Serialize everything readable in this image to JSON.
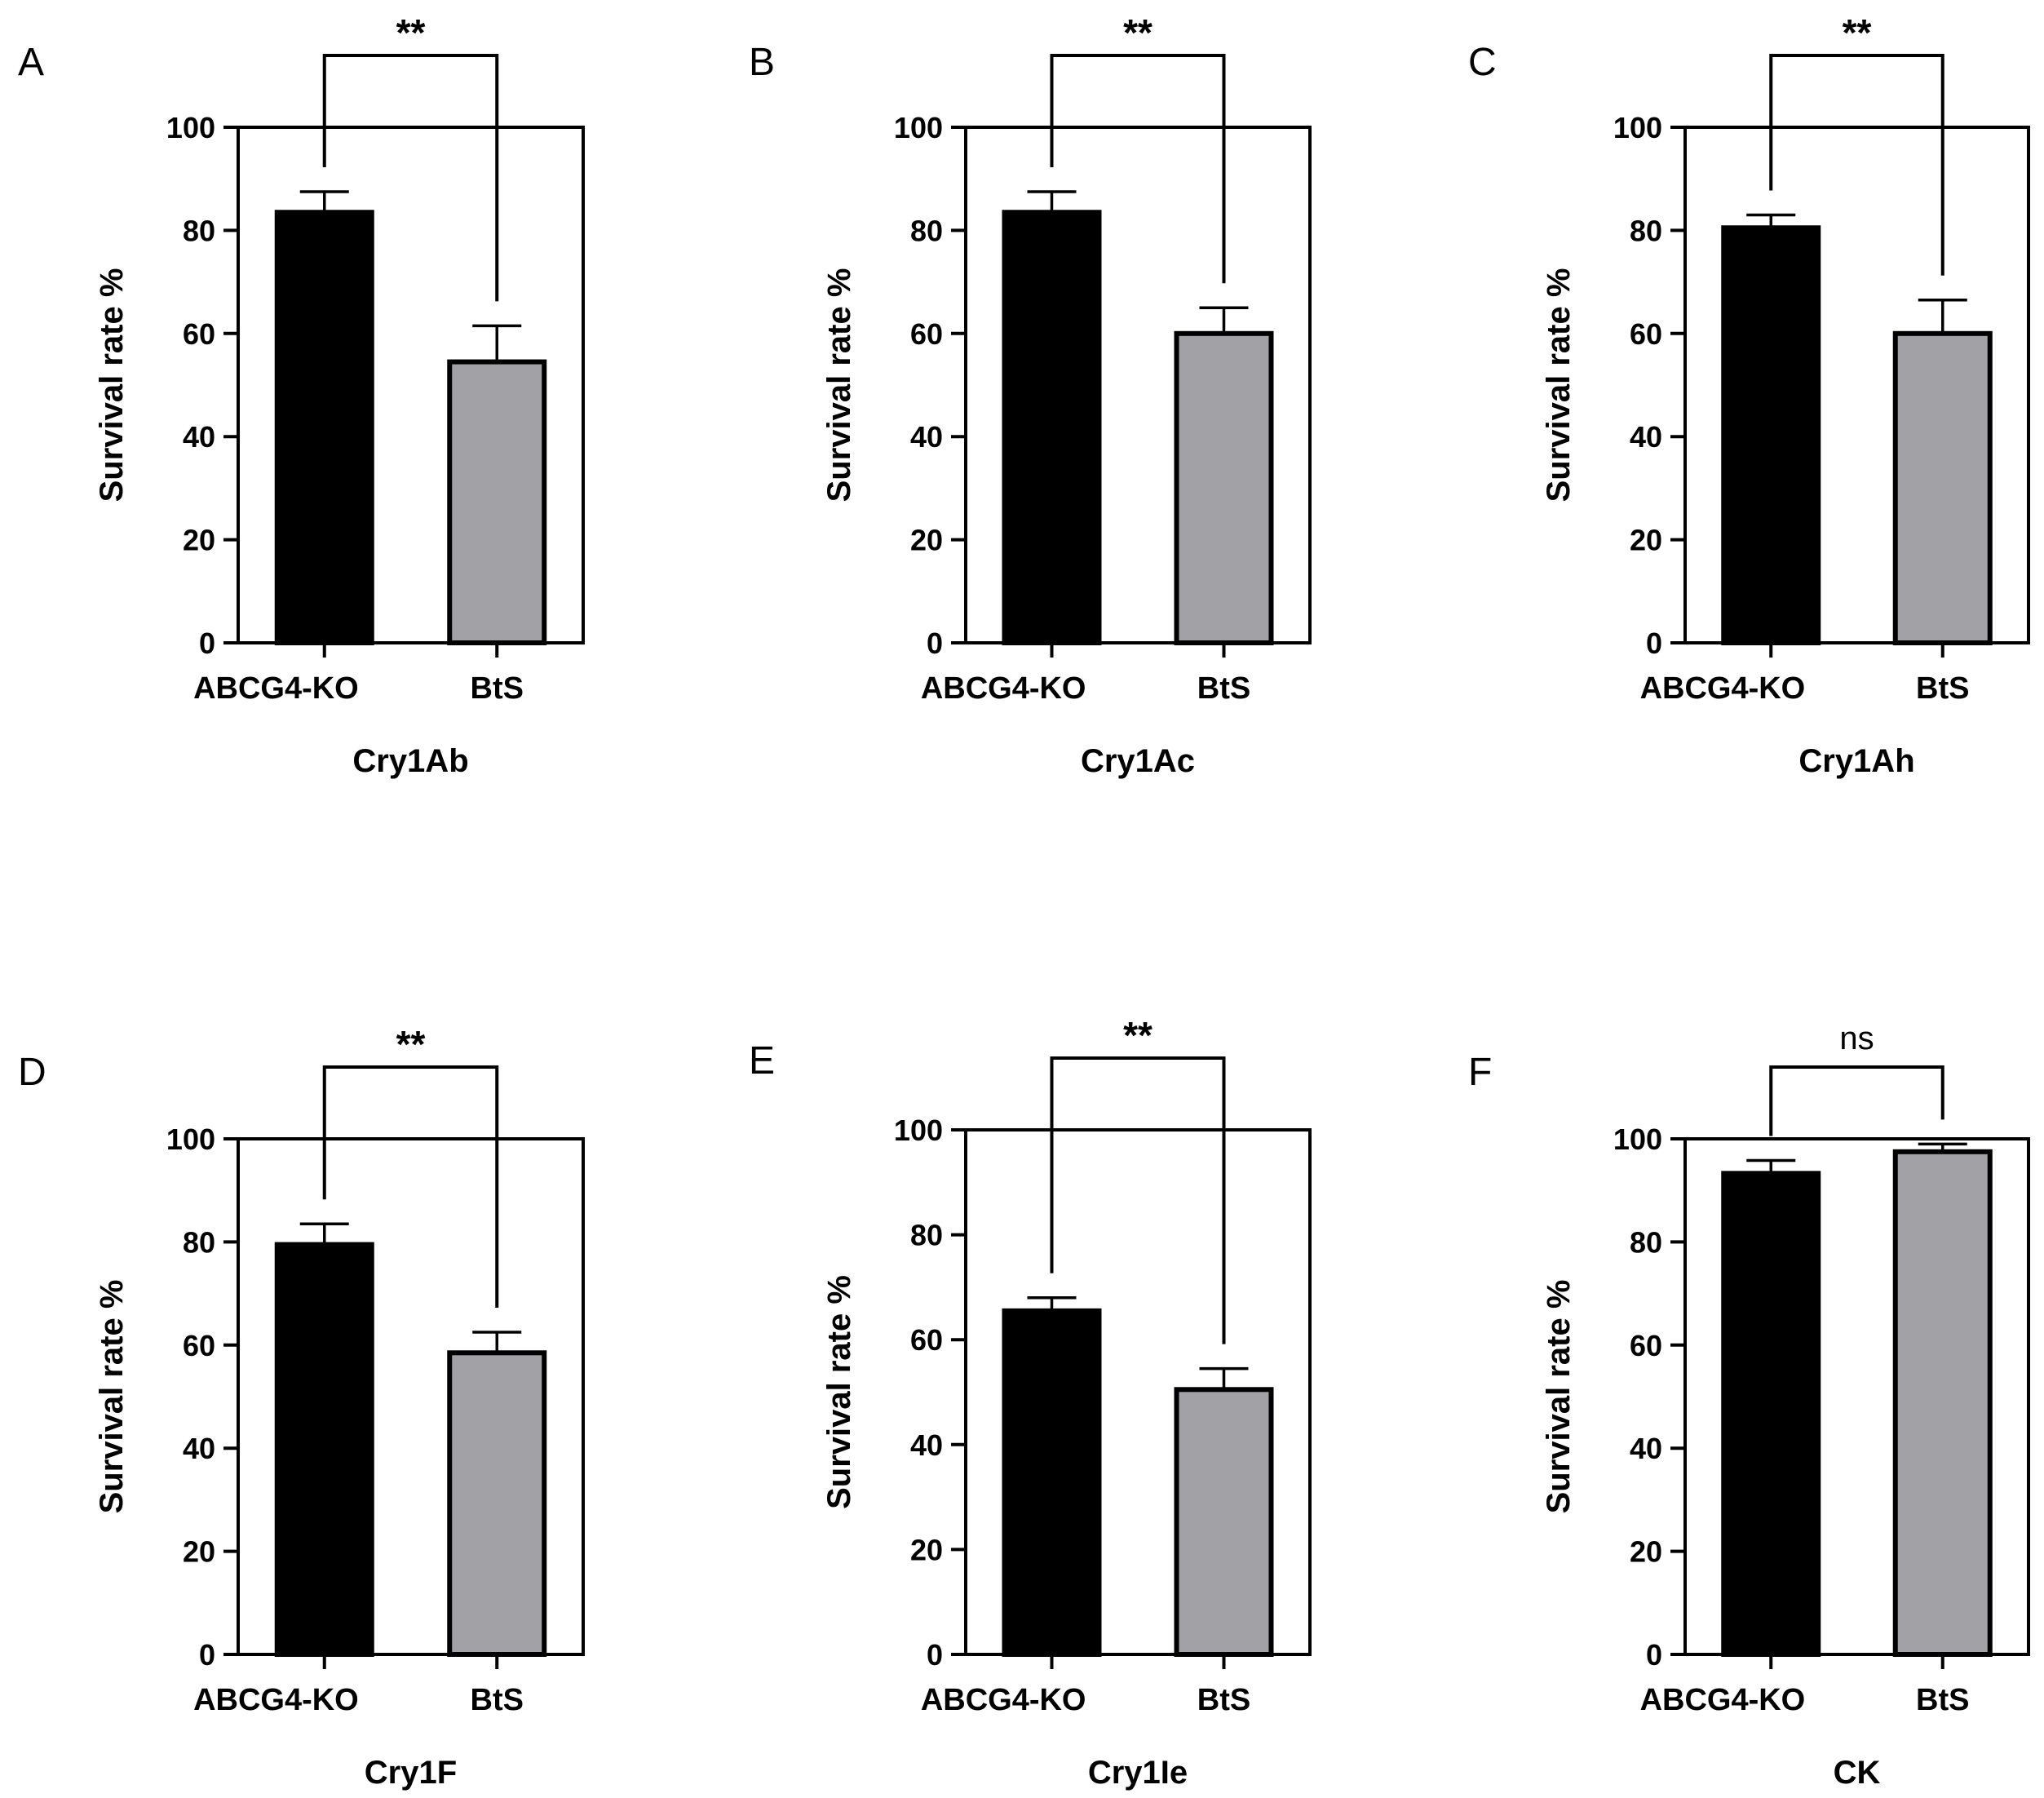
{
  "colors": {
    "bar_ko": "#000000",
    "bar_bts": "#a1a1a6",
    "axis": "#000000"
  },
  "chart_data": [
    {
      "panel": "A",
      "type": "bar",
      "title": "",
      "xlabel": "Cry1Ab",
      "ylabel": "Survival rate %",
      "categories": [
        "ABCG4-KO",
        "BtS"
      ],
      "values": [
        83.5,
        54.5
      ],
      "errors": [
        4,
        7
      ],
      "ylim": [
        0,
        100
      ],
      "yticks": [
        "0",
        "20",
        "40",
        "60",
        "80",
        "100"
      ],
      "significance": "**"
    },
    {
      "panel": "B",
      "type": "bar",
      "title": "",
      "xlabel": "Cry1Ac",
      "ylabel": "Survival rate %",
      "categories": [
        "ABCG4-KO",
        "BtS"
      ],
      "values": [
        83.5,
        60
      ],
      "errors": [
        4,
        5
      ],
      "ylim": [
        0,
        100
      ],
      "yticks": [
        "0",
        "20",
        "40",
        "60",
        "80",
        "100"
      ],
      "significance": "**"
    },
    {
      "panel": "C",
      "type": "bar",
      "title": "",
      "xlabel": "Cry1Ah",
      "ylabel": "Survival rate %",
      "categories": [
        "ABCG4-KO",
        "BtS"
      ],
      "values": [
        80.5,
        60
      ],
      "errors": [
        2.5,
        6.5
      ],
      "ylim": [
        0,
        100
      ],
      "yticks": [
        "0",
        "20",
        "40",
        "60",
        "80",
        "100"
      ],
      "significance": "**"
    },
    {
      "panel": "D",
      "type": "bar",
      "title": "",
      "xlabel": "Cry1F",
      "ylabel": "Survival rate %",
      "categories": [
        "ABCG4-KO",
        "BtS"
      ],
      "values": [
        79.5,
        58.5
      ],
      "errors": [
        4,
        4
      ],
      "ylim": [
        0,
        100
      ],
      "yticks": [
        "0",
        "20",
        "40",
        "60",
        "80",
        "100"
      ],
      "significance": "**"
    },
    {
      "panel": "E",
      "type": "bar",
      "title": "",
      "xlabel": "Cry1Ie",
      "ylabel": "Survival rate %",
      "categories": [
        "ABCG4-KO",
        "BtS"
      ],
      "values": [
        65.5,
        50.5
      ],
      "errors": [
        2.5,
        4
      ],
      "ylim": [
        0,
        100
      ],
      "yticks": [
        "0",
        "20",
        "40",
        "60",
        "80",
        "100"
      ],
      "significance": "**"
    },
    {
      "panel": "F",
      "type": "bar",
      "title": "",
      "xlabel": "CK",
      "ylabel": "Survival rate %",
      "categories": [
        "ABCG4-KO",
        "BtS"
      ],
      "values": [
        93.3,
        97.5
      ],
      "errors": [
        2.5,
        1.5
      ],
      "ylim": [
        0,
        100
      ],
      "yticks": [
        "0",
        "20",
        "40",
        "60",
        "80",
        "100"
      ],
      "significance": "ns"
    }
  ]
}
